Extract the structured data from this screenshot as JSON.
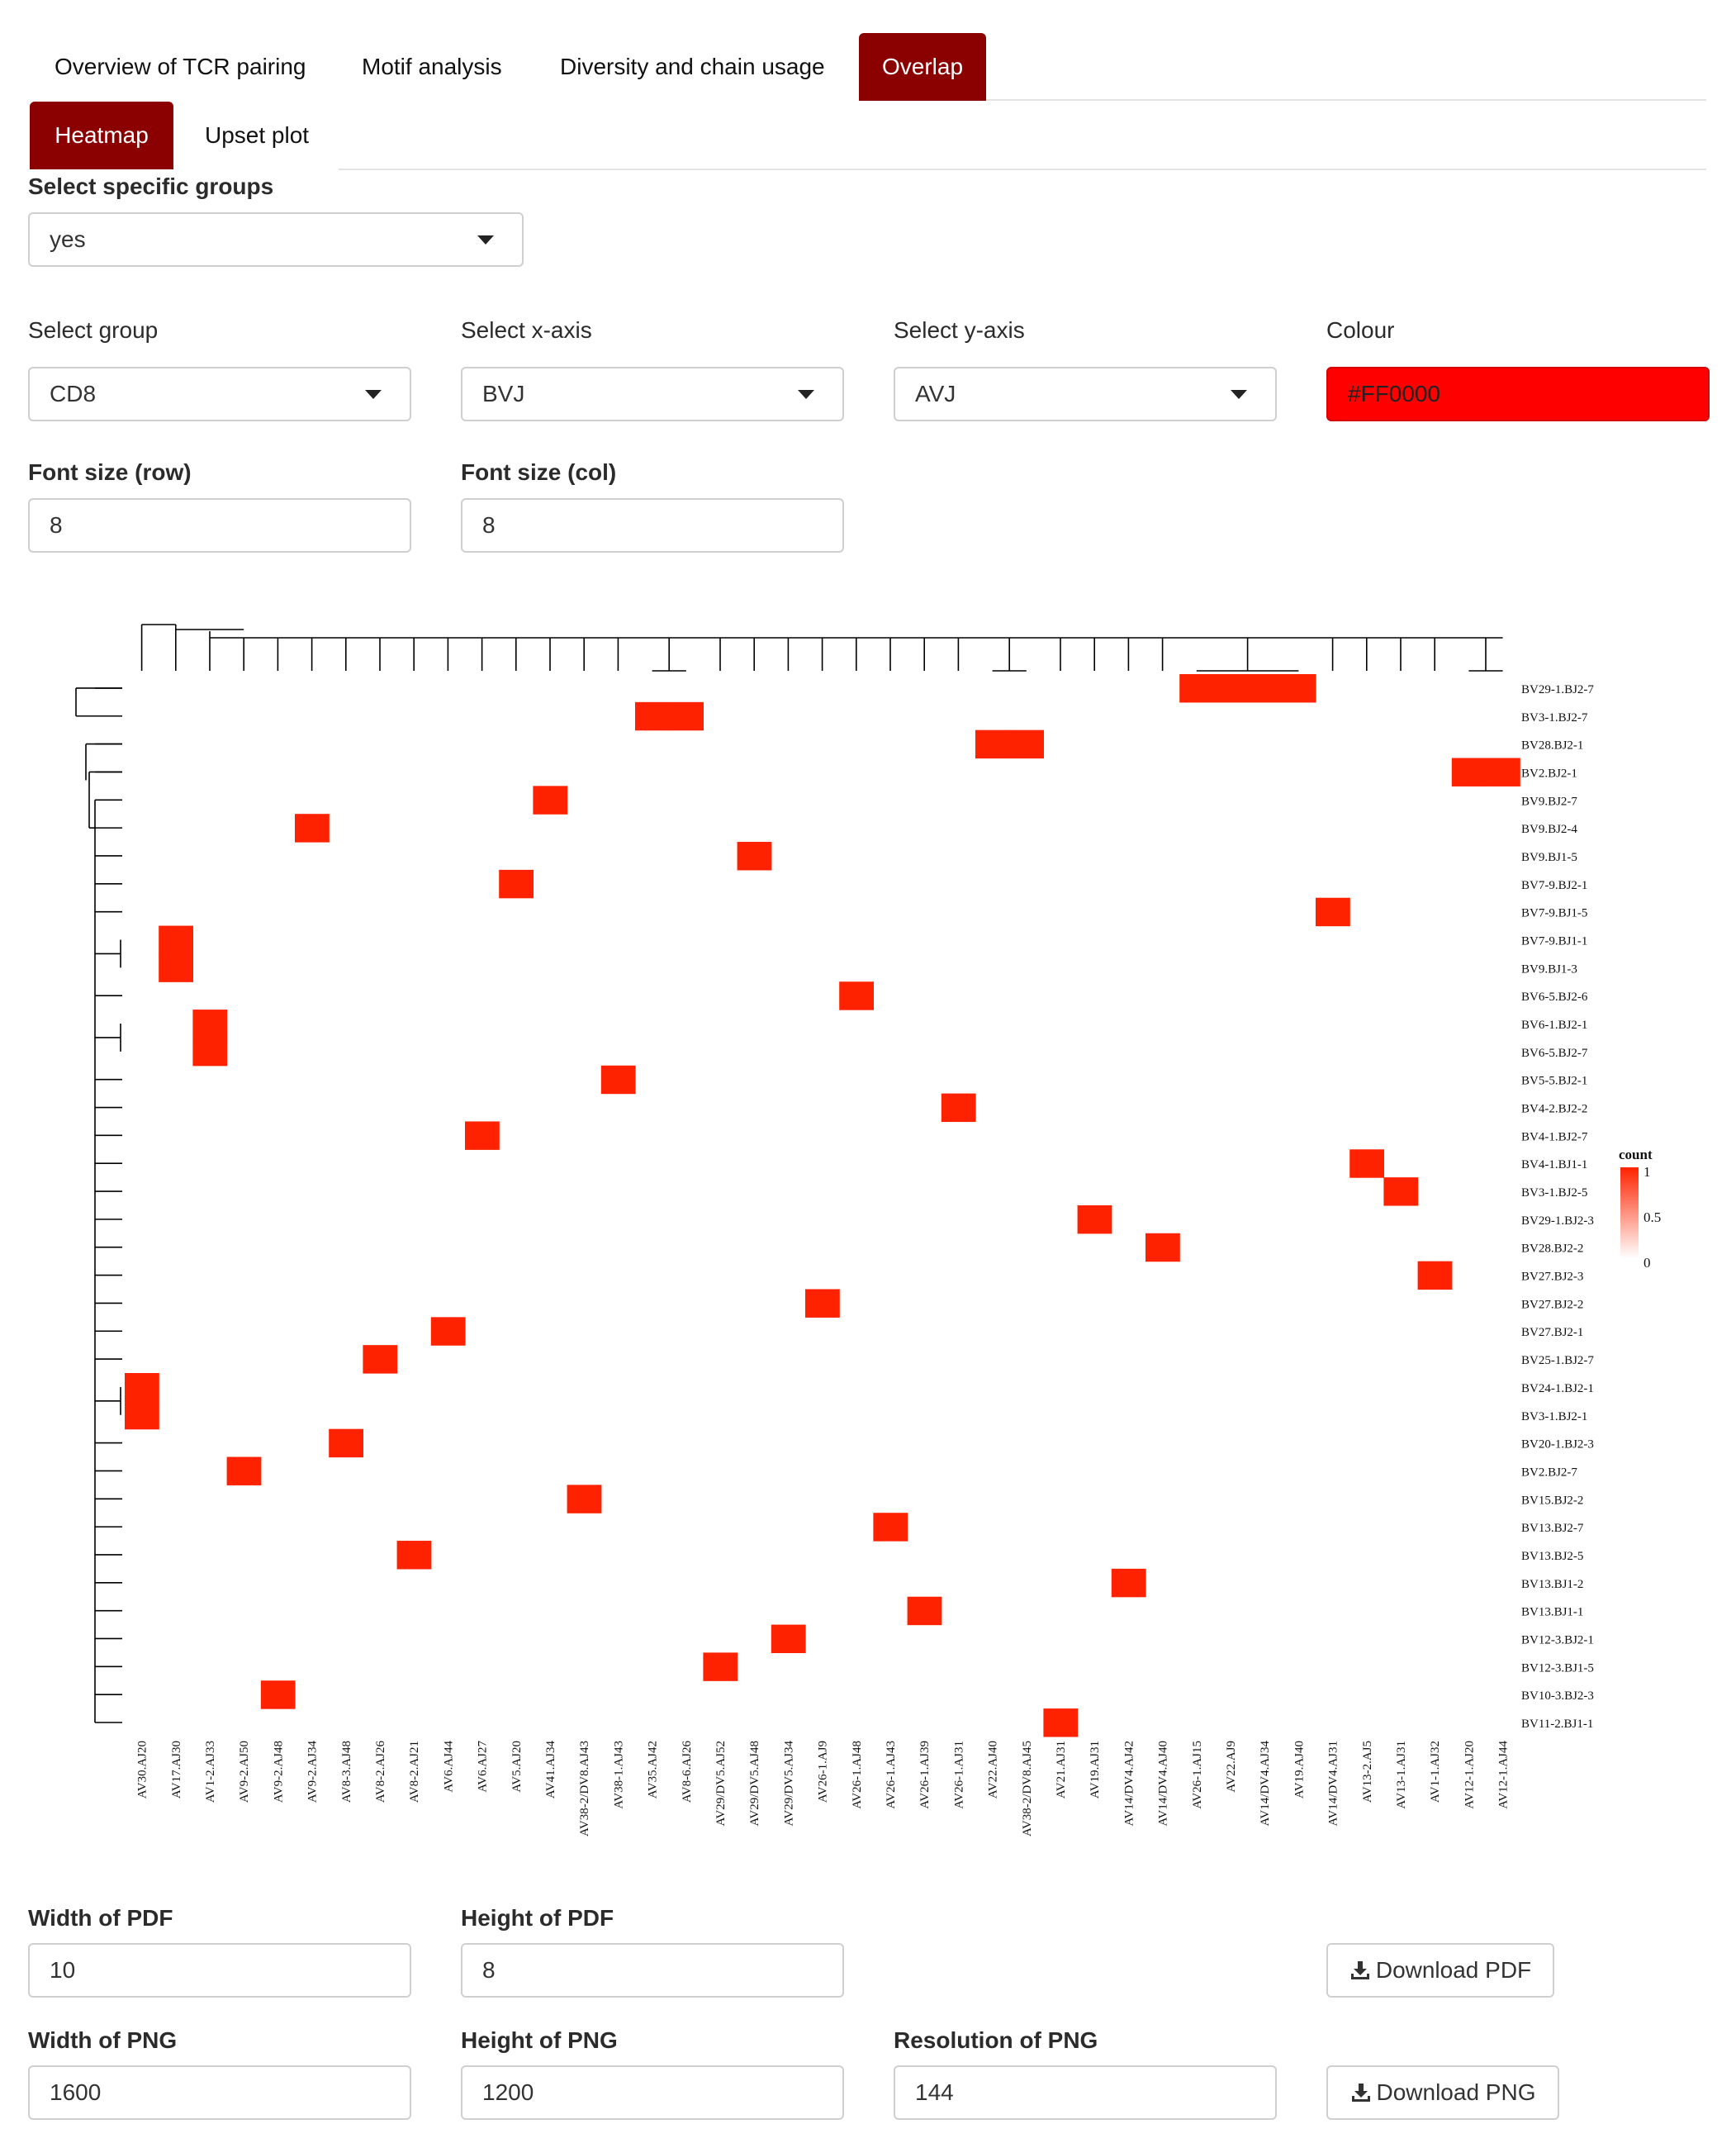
{
  "tabs": [
    {
      "label": "Overview of TCR pairing"
    },
    {
      "label": "Motif analysis"
    },
    {
      "label": "Diversity and chain usage"
    },
    {
      "label": "Overlap"
    }
  ],
  "subtabs": [
    {
      "label": "Heatmap"
    },
    {
      "label": "Upset plot"
    }
  ],
  "select_specific_groups": {
    "label": "Select specific groups",
    "value": "yes"
  },
  "select_group": {
    "label": "Select group",
    "value": "CD8"
  },
  "select_x_axis": {
    "label": "Select x-axis",
    "value": "BVJ"
  },
  "select_y_axis": {
    "label": "Select y-axis",
    "value": "AVJ"
  },
  "colour": {
    "label": "Colour",
    "value": "#FF0000"
  },
  "font_size_row": {
    "label": "Font size (row)",
    "value": "8"
  },
  "font_size_col": {
    "label": "Font size (col)",
    "value": "8"
  },
  "width_pdf": {
    "label": "Width of PDF",
    "value": "10"
  },
  "height_pdf": {
    "label": "Height of PDF",
    "value": "8"
  },
  "download_pdf": {
    "label": "Download PDF"
  },
  "width_png": {
    "label": "Width of PNG",
    "value": "1600"
  },
  "height_png": {
    "label": "Height of PNG",
    "value": "1200"
  },
  "resolution_png": {
    "label": "Resolution of PNG",
    "value": "144"
  },
  "download_png": {
    "label": "Download PNG"
  },
  "colors": {
    "accent": "#8b0000",
    "cell": "#ff2200",
    "picker": "#ff0000"
  },
  "chart_data": {
    "type": "heatmap",
    "legend": {
      "title": "count",
      "ticks": [
        "1",
        "0.5",
        "0"
      ],
      "placement": "right"
    },
    "x_labels": [
      "AV30.AJ20",
      "AV17.AJ30",
      "AV1-2.AJ33",
      "AV9-2.AJ50",
      "AV9-2.AJ48",
      "AV9-2.AJ34",
      "AV8-3.AJ48",
      "AV8-2.AJ26",
      "AV8-2.AJ21",
      "AV6.AJ44",
      "AV6.AJ27",
      "AV5.AJ20",
      "AV41.AJ34",
      "AV38-2/DV8.AJ43",
      "AV38-1.AJ43",
      "AV35.AJ42",
      "AV8-6.AJ26",
      "AV29/DV5.AJ52",
      "AV29/DV5.AJ48",
      "AV29/DV5.AJ34",
      "AV26-1.AJ9",
      "AV26-1.AJ48",
      "AV26-1.AJ43",
      "AV26-1.AJ39",
      "AV26-1.AJ31",
      "AV22.AJ40",
      "AV38-2/DV8.AJ45",
      "AV21.AJ31",
      "AV19.AJ31",
      "AV14/DV4.AJ42",
      "AV14/DV4.AJ40",
      "AV26-1.AJ15",
      "AV22.AJ9",
      "AV14/DV4.AJ34",
      "AV19.AJ40",
      "AV14/DV4.AJ31",
      "AV13-2.AJ5",
      "AV13-1.AJ31",
      "AV1-1.AJ32",
      "AV12-1.AJ20",
      "AV12-1.AJ44"
    ],
    "y_labels": [
      "BV29-1.BJ2-7",
      "BV3-1.BJ2-7",
      "BV28.BJ2-1",
      "BV2.BJ2-1",
      "BV9.BJ2-7",
      "BV9.BJ2-4",
      "BV9.BJ1-5",
      "BV7-9.BJ2-1",
      "BV7-9.BJ1-5",
      "BV7-9.BJ1-1",
      "BV9.BJ1-3",
      "BV6-5.BJ2-6",
      "BV6-1.BJ2-1",
      "BV6-5.BJ2-7",
      "BV5-5.BJ2-1",
      "BV4-2.BJ2-2",
      "BV4-1.BJ2-7",
      "BV4-1.BJ1-1",
      "BV3-1.BJ2-5",
      "BV29-1.BJ2-3",
      "BV28.BJ2-2",
      "BV27.BJ2-3",
      "BV27.BJ2-2",
      "BV27.BJ2-1",
      "BV25-1.BJ2-7",
      "BV24-1.BJ2-1",
      "BV3-1.BJ2-1",
      "BV20-1.BJ2-3",
      "BV2.BJ2-7",
      "BV15.BJ2-2",
      "BV13.BJ2-7",
      "BV13.BJ2-5",
      "BV13.BJ1-2",
      "BV13.BJ1-1",
      "BV12-3.BJ2-1",
      "BV12-3.BJ1-5",
      "BV10-3.BJ2-3",
      "BV11-2.BJ1-1"
    ],
    "cells": [
      {
        "x": "AV26-1.AJ15",
        "y": "BV29-1.BJ2-7",
        "value": 1
      },
      {
        "x": "AV22.AJ9",
        "y": "BV29-1.BJ2-7",
        "value": 1
      },
      {
        "x": "AV14/DV4.AJ34",
        "y": "BV29-1.BJ2-7",
        "value": 1
      },
      {
        "x": "AV19.AJ40",
        "y": "BV29-1.BJ2-7",
        "value": 1
      },
      {
        "x": "AV35.AJ42",
        "y": "BV3-1.BJ2-7",
        "value": 1
      },
      {
        "x": "AV8-6.AJ26",
        "y": "BV3-1.BJ2-7",
        "value": 1
      },
      {
        "x": "AV22.AJ40",
        "y": "BV28.BJ2-1",
        "value": 1
      },
      {
        "x": "AV38-2/DV8.AJ45",
        "y": "BV28.BJ2-1",
        "value": 1
      },
      {
        "x": "AV12-1.AJ20",
        "y": "BV2.BJ2-1",
        "value": 1
      },
      {
        "x": "AV12-1.AJ44",
        "y": "BV2.BJ2-1",
        "value": 1
      },
      {
        "x": "AV41.AJ34",
        "y": "BV9.BJ2-7",
        "value": 1
      },
      {
        "x": "AV9-2.AJ34",
        "y": "BV9.BJ2-4",
        "value": 1
      },
      {
        "x": "AV29/DV5.AJ48",
        "y": "BV9.BJ1-5",
        "value": 1
      },
      {
        "x": "AV5.AJ20",
        "y": "BV7-9.BJ2-1",
        "value": 1
      },
      {
        "x": "AV14/DV4.AJ31",
        "y": "BV7-9.BJ1-5",
        "value": 1
      },
      {
        "x": "AV17.AJ30",
        "y": "BV7-9.BJ1-1",
        "value": 1
      },
      {
        "x": "AV17.AJ30",
        "y": "BV9.BJ1-3",
        "value": 1
      },
      {
        "x": "AV26-1.AJ48",
        "y": "BV6-5.BJ2-6",
        "value": 1
      },
      {
        "x": "AV1-2.AJ33",
        "y": "BV6-1.BJ2-1",
        "value": 1
      },
      {
        "x": "AV1-2.AJ33",
        "y": "BV6-5.BJ2-7",
        "value": 1
      },
      {
        "x": "AV38-1.AJ43",
        "y": "BV5-5.BJ2-1",
        "value": 1
      },
      {
        "x": "AV26-1.AJ31",
        "y": "BV4-2.BJ2-2",
        "value": 1
      },
      {
        "x": "AV6.AJ27",
        "y": "BV4-1.BJ2-7",
        "value": 1
      },
      {
        "x": "AV13-2.AJ5",
        "y": "BV4-1.BJ1-1",
        "value": 1
      },
      {
        "x": "AV13-1.AJ31",
        "y": "BV3-1.BJ2-5",
        "value": 1
      },
      {
        "x": "AV19.AJ31",
        "y": "BV29-1.BJ2-3",
        "value": 1
      },
      {
        "x": "AV14/DV4.AJ40",
        "y": "BV28.BJ2-2",
        "value": 1
      },
      {
        "x": "AV1-1.AJ32",
        "y": "BV27.BJ2-3",
        "value": 1
      },
      {
        "x": "AV26-1.AJ9",
        "y": "BV27.BJ2-2",
        "value": 1
      },
      {
        "x": "AV6.AJ44",
        "y": "BV27.BJ2-1",
        "value": 1
      },
      {
        "x": "AV8-2.AJ26",
        "y": "BV25-1.BJ2-7",
        "value": 1
      },
      {
        "x": "AV30.AJ20",
        "y": "BV24-1.BJ2-1",
        "value": 1
      },
      {
        "x": "AV30.AJ20",
        "y": "BV3-1.BJ2-1",
        "value": 1
      },
      {
        "x": "AV8-3.AJ48",
        "y": "BV20-1.BJ2-3",
        "value": 1
      },
      {
        "x": "AV9-2.AJ50",
        "y": "BV2.BJ2-7",
        "value": 1
      },
      {
        "x": "AV38-2/DV8.AJ43",
        "y": "BV15.BJ2-2",
        "value": 1
      },
      {
        "x": "AV26-1.AJ43",
        "y": "BV13.BJ2-7",
        "value": 1
      },
      {
        "x": "AV8-2.AJ21",
        "y": "BV13.BJ2-5",
        "value": 1
      },
      {
        "x": "AV14/DV4.AJ42",
        "y": "BV13.BJ1-2",
        "value": 1
      },
      {
        "x": "AV26-1.AJ39",
        "y": "BV13.BJ1-1",
        "value": 1
      },
      {
        "x": "AV29/DV5.AJ34",
        "y": "BV12-3.BJ2-1",
        "value": 1
      },
      {
        "x": "AV29/DV5.AJ52",
        "y": "BV12-3.BJ1-5",
        "value": 1
      },
      {
        "x": "AV9-2.AJ48",
        "y": "BV10-3.BJ2-3",
        "value": 1
      },
      {
        "x": "AV21.AJ31",
        "y": "BV11-2.BJ1-1",
        "value": 1
      }
    ]
  }
}
